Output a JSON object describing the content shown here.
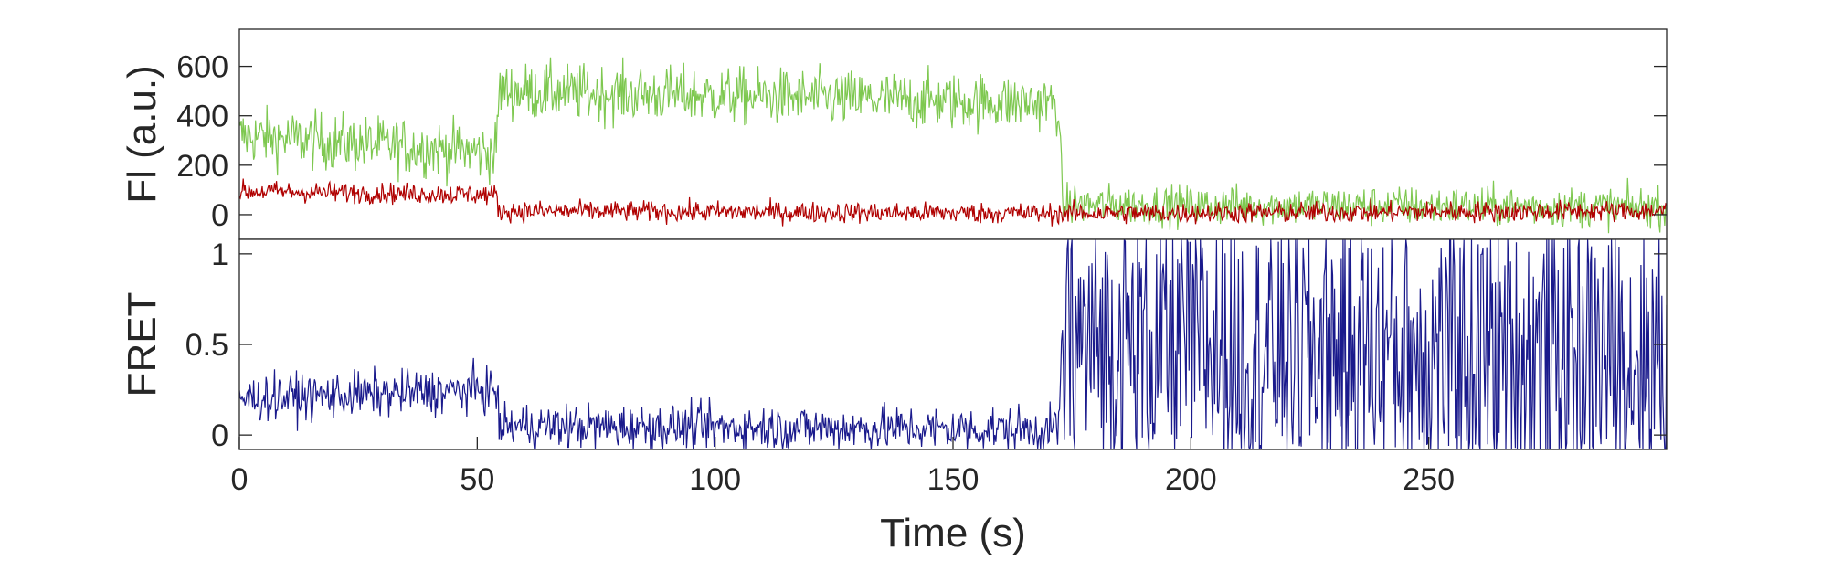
{
  "chart_data": [
    {
      "type": "line",
      "panel": "top",
      "xlabel": "",
      "ylabel": "Fl (a.u.)",
      "xlim": [
        0,
        300
      ],
      "ylim": [
        -100,
        750
      ],
      "yticks": [
        0,
        200,
        400,
        600
      ],
      "ytick_labels": [
        "0",
        "200",
        "400",
        "600"
      ],
      "grid": false,
      "series": [
        {
          "color": "#7ec850",
          "x": [
            0,
            54,
            54.5,
            172,
            173,
            300
          ],
          "y": [
            320,
            250,
            500,
            450,
            40,
            30
          ],
          "noise": 110
        },
        {
          "color": "#b00000",
          "x": [
            0,
            54,
            54.5,
            172,
            173,
            300
          ],
          "y": [
            95,
            80,
            15,
            5,
            5,
            15
          ],
          "noise": 40
        }
      ]
    },
    {
      "type": "line",
      "panel": "bottom",
      "xlabel": "Time (s)",
      "ylabel": "FRET",
      "xlim": [
        0,
        300
      ],
      "ylim": [
        -0.08,
        1.08
      ],
      "yticks": [
        0,
        0.5,
        1
      ],
      "ytick_labels": [
        "0",
        "0.5",
        "1"
      ],
      "xticks": [
        0,
        50,
        100,
        150,
        200,
        250
      ],
      "xtick_labels": [
        "0",
        "50",
        "100",
        "150",
        "200",
        "250"
      ],
      "grid": false,
      "series": [
        {
          "color": "#1a1a8c",
          "x": [
            0,
            54,
            54.5,
            172,
            173,
            300
          ],
          "y": [
            0.2,
            0.25,
            0.05,
            0.03,
            0.5,
            0.45
          ],
          "noise": 0.12
        }
      ]
    }
  ]
}
